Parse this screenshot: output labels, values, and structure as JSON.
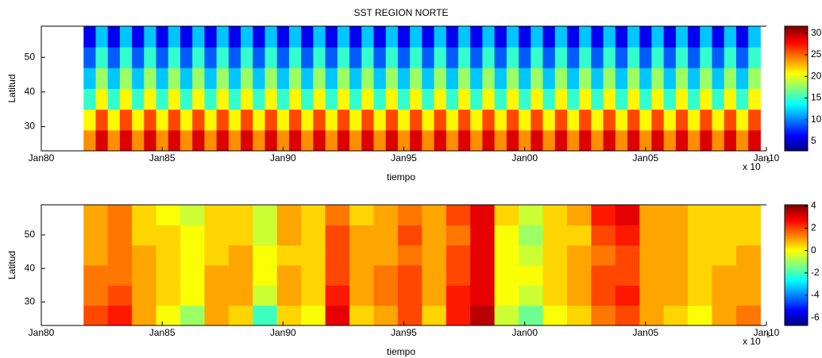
{
  "chart_data": [
    {
      "type": "heatmap",
      "title": "SST REGION NORTE",
      "x_label": "tiempo",
      "y_label": "Latitud",
      "x_offset_label": "x 10",
      "x_offset_exponent": "5",
      "xlim": [
        1980,
        2010
      ],
      "xticks": [
        {
          "value": 1980,
          "label": "Jan80"
        },
        {
          "value": 1985,
          "label": "Jan85"
        },
        {
          "value": 1990,
          "label": "Jan90"
        },
        {
          "value": 1995,
          "label": "Jan95"
        },
        {
          "value": 2000,
          "label": "Jan00"
        },
        {
          "value": 2005,
          "label": "Jan05"
        },
        {
          "value": 2010,
          "label": "Jan10"
        }
      ],
      "ylim": [
        23,
        59
      ],
      "yticks": [
        30,
        40,
        50
      ],
      "clim": [
        2.8,
        31.6
      ],
      "cticks": [
        5,
        10,
        15,
        20,
        25,
        30
      ],
      "colormap": "jet",
      "x": [
        1982,
        1982.5,
        1983,
        1983.5,
        1984,
        1984.5,
        1985,
        1985.5,
        1986,
        1986.5,
        1987,
        1987.5,
        1988,
        1988.5,
        1989,
        1989.5,
        1990,
        1990.5,
        1991,
        1991.5,
        1992,
        1992.5,
        1993,
        1993.5,
        1994,
        1994.5,
        1995,
        1995.5,
        1996,
        1996.5,
        1997,
        1997.5,
        1998,
        1998.5,
        1999,
        1999.5,
        2000,
        2000.5,
        2001,
        2001.5,
        2002,
        2002.5,
        2003,
        2003.5,
        2004,
        2004.5,
        2005,
        2005.5,
        2006,
        2006.5,
        2007,
        2007.5,
        2008,
        2008.5,
        2009,
        2009.5
      ],
      "y": [
        26,
        32,
        38,
        44,
        50,
        56
      ],
      "z": [
        [
          24,
          29,
          24,
          29,
          24,
          29,
          24,
          29,
          24,
          29,
          24,
          29,
          24,
          29,
          24,
          29,
          24,
          29,
          24,
          29,
          24,
          29,
          24,
          29,
          24,
          29,
          24,
          29,
          24,
          29,
          24,
          29,
          24,
          29,
          24,
          29,
          24,
          29,
          24,
          29,
          24,
          29,
          24,
          29,
          24,
          29,
          24,
          29,
          24,
          29,
          24,
          29,
          24,
          29,
          24,
          29
        ],
        [
          21,
          26,
          21,
          26,
          21,
          26,
          21,
          26,
          21,
          26,
          21,
          26,
          21,
          26,
          21,
          26,
          21,
          26,
          21,
          26,
          21,
          26,
          21,
          26,
          21,
          26,
          21,
          26,
          21,
          26,
          21,
          26,
          21,
          26,
          21,
          26,
          21,
          26,
          21,
          26,
          21,
          26,
          21,
          26,
          21,
          26,
          21,
          26,
          21,
          26,
          21,
          26,
          21,
          26,
          21,
          26
        ],
        [
          15,
          21,
          15,
          21,
          15,
          21,
          15,
          21,
          15,
          21,
          15,
          21,
          15,
          21,
          15,
          21,
          15,
          21,
          15,
          21,
          15,
          21,
          15,
          21,
          15,
          21,
          15,
          21,
          15,
          21,
          15,
          21,
          15,
          21,
          15,
          21,
          15,
          21,
          15,
          21,
          15,
          21,
          15,
          21,
          15,
          21,
          15,
          21,
          15,
          21,
          15,
          21,
          15,
          21,
          15,
          21
        ],
        [
          12,
          18,
          12,
          18,
          12,
          18,
          12,
          18,
          12,
          18,
          12,
          18,
          12,
          18,
          12,
          18,
          12,
          18,
          12,
          18,
          12,
          18,
          12,
          18,
          12,
          18,
          12,
          18,
          12,
          18,
          12,
          18,
          12,
          18,
          12,
          18,
          12,
          18,
          12,
          18,
          12,
          18,
          12,
          18,
          12,
          18,
          12,
          18,
          12,
          18,
          12,
          18,
          12,
          18,
          12,
          18
        ],
        [
          9,
          15,
          9,
          15,
          9,
          15,
          9,
          15,
          9,
          15,
          9,
          15,
          9,
          15,
          9,
          15,
          9,
          15,
          9,
          15,
          9,
          15,
          9,
          15,
          9,
          15,
          9,
          15,
          9,
          15,
          9,
          15,
          9,
          15,
          9,
          15,
          9,
          15,
          9,
          15,
          9,
          15,
          9,
          15,
          9,
          15,
          9,
          15,
          9,
          15,
          9,
          15,
          9,
          15,
          9,
          15
        ],
        [
          6,
          12,
          6,
          12,
          6,
          12,
          6,
          12,
          6,
          12,
          6,
          12,
          6,
          12,
          6,
          12,
          6,
          12,
          6,
          12,
          6,
          12,
          6,
          12,
          6,
          12,
          6,
          12,
          6,
          12,
          6,
          12,
          6,
          12,
          6,
          12,
          6,
          12,
          6,
          12,
          6,
          12,
          6,
          12,
          6,
          12,
          6,
          12,
          6,
          12,
          6,
          12,
          6,
          12,
          6,
          12
        ]
      ]
    },
    {
      "type": "heatmap",
      "x_label": "tiempo",
      "y_label": "Latitud",
      "x_offset_label": "x 10",
      "x_offset_exponent": "5",
      "xlim": [
        1980,
        2010
      ],
      "xticks": [
        {
          "value": 1980,
          "label": "Jan80"
        },
        {
          "value": 1985,
          "label": "Jan85"
        },
        {
          "value": 1990,
          "label": "Jan90"
        },
        {
          "value": 1995,
          "label": "Jan95"
        },
        {
          "value": 2000,
          "label": "Jan00"
        },
        {
          "value": 2005,
          "label": "Jan05"
        },
        {
          "value": 2010,
          "label": "Jan10"
        }
      ],
      "ylim": [
        23,
        59
      ],
      "yticks": [
        30,
        40,
        50
      ],
      "clim": [
        -6.7,
        4.1
      ],
      "cticks": [
        -6,
        -4,
        -2,
        0,
        2,
        4
      ],
      "colormap": "jet",
      "x": [
        1982.25,
        1983.25,
        1984.25,
        1985.25,
        1986.25,
        1987.25,
        1988.25,
        1989.25,
        1990.25,
        1991.25,
        1992.25,
        1993.25,
        1994.25,
        1995.25,
        1996.25,
        1997.25,
        1998.25,
        1999.25,
        2000.25,
        2001.25,
        2002.25,
        2003.25,
        2004.25,
        2005.25,
        2006.25,
        2007.25,
        2008.25,
        2009.25
      ],
      "y": [
        26,
        32,
        38,
        44,
        50,
        56
      ],
      "z": [
        [
          2,
          2.5,
          1,
          0,
          -1,
          1,
          0.5,
          -2,
          0.5,
          0,
          3,
          0.5,
          1,
          2,
          0.5,
          2.5,
          3.5,
          -0.5,
          -1.5,
          0,
          0.5,
          1.5,
          2,
          1,
          0.5,
          0,
          1,
          1.5
        ],
        [
          1.5,
          2,
          1,
          0.5,
          0,
          1,
          1,
          -0.5,
          1,
          0.5,
          2.5,
          1,
          1.5,
          2,
          1,
          2.5,
          3,
          0,
          -0.5,
          0.5,
          1,
          2,
          2.5,
          1,
          1,
          0.5,
          1,
          1
        ],
        [
          1.5,
          1.5,
          1,
          0.5,
          0,
          1,
          1,
          0,
          1,
          0.5,
          2,
          1,
          1.5,
          2,
          1,
          2,
          3,
          0,
          0,
          0.5,
          1,
          2,
          2,
          1,
          1,
          0.5,
          1,
          1
        ],
        [
          1,
          1.5,
          1,
          0.5,
          0,
          0.5,
          1,
          0,
          0.5,
          0.5,
          2,
          1,
          1,
          1.5,
          1,
          2,
          3,
          0,
          -0.5,
          0.5,
          1,
          1.5,
          2,
          1,
          1,
          0.5,
          0.5,
          1
        ],
        [
          1,
          1.5,
          0.5,
          0.5,
          0,
          0.5,
          0.5,
          -0.5,
          1,
          0.5,
          2,
          1,
          1,
          2,
          1,
          1.5,
          3,
          0,
          -1,
          0.5,
          0.5,
          2,
          2.5,
          1,
          1,
          0.5,
          0.5,
          0.5
        ],
        [
          1,
          1.5,
          0.5,
          0,
          -0.5,
          0.5,
          0.5,
          -0.5,
          1,
          0.5,
          1.5,
          0.5,
          1,
          1.5,
          1,
          2,
          3,
          0.5,
          -0.5,
          0.5,
          1,
          2.5,
          3,
          1,
          1,
          0.5,
          0.5,
          0.5
        ]
      ]
    }
  ]
}
